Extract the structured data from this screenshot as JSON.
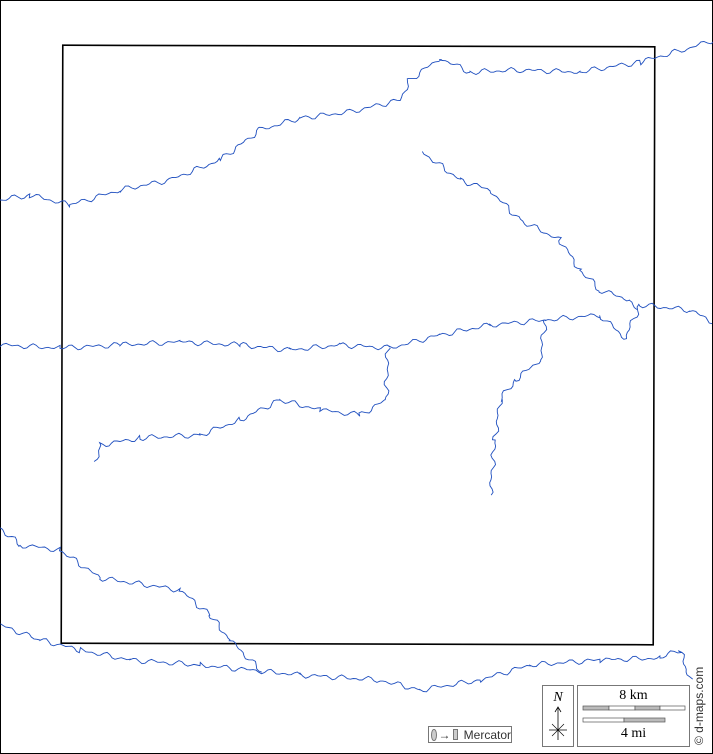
{
  "map": {
    "river_color": "#1f4fbf",
    "frame_color": "#000000",
    "projection_label": "Mercator",
    "projection_icon": "circle-to-square-icon",
    "north_label": "N",
    "scale_km": "8 km",
    "scale_mi": "4 mi",
    "credit": "© d-maps.com"
  }
}
